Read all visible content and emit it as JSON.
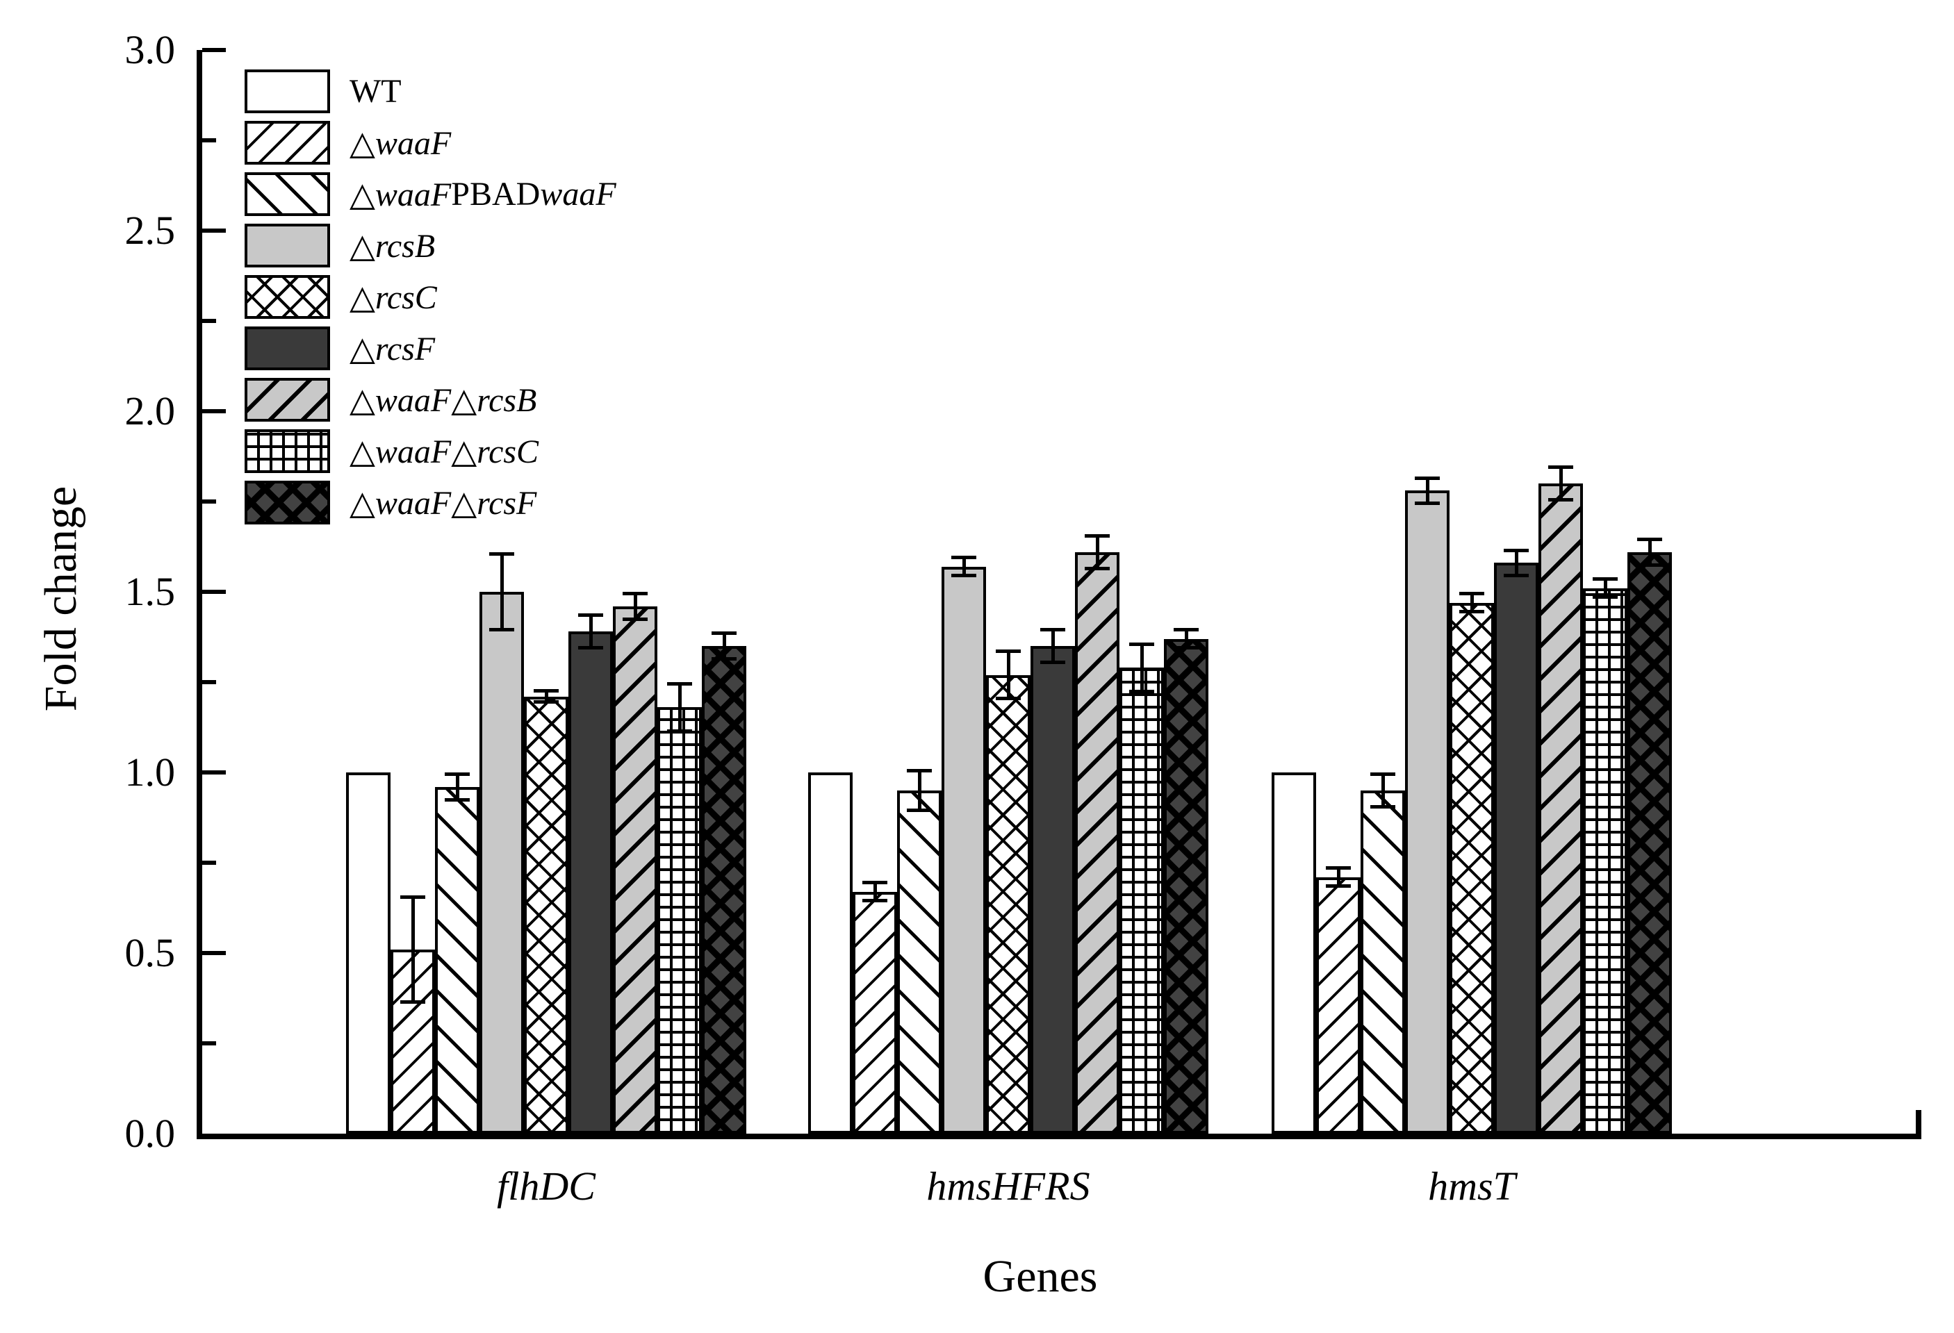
{
  "chart_data": {
    "type": "bar",
    "title": "",
    "xlabel": "Genes",
    "ylabel": "Fold change",
    "ylim": [
      0.0,
      3.0
    ],
    "ytick_labels": [
      "0.0",
      "0.5",
      "1.0",
      "1.5",
      "2.0",
      "2.5",
      "3.0"
    ],
    "ymajor_step": 0.5,
    "yminor_step": 0.25,
    "grid": false,
    "legend_position": "upper-left-inside",
    "categories": [
      "flhDC",
      "hmsHFRS",
      "hmsT"
    ],
    "series": [
      {
        "name": "WT",
        "pattern": "solid-white",
        "values": [
          1.0,
          1.0,
          1.0
        ],
        "errors": [
          0,
          0,
          0
        ]
      },
      {
        "name": "△waaF",
        "pattern": "hatch-up",
        "values": [
          0.51,
          0.67,
          0.71
        ],
        "errors": [
          0.15,
          0.03,
          0.03
        ]
      },
      {
        "name": "△waaF PBADwaaF",
        "pattern": "hatch-down-wide",
        "values": [
          0.96,
          0.95,
          0.95
        ],
        "errors": [
          0.04,
          0.06,
          0.05
        ]
      },
      {
        "name": "△rcsB",
        "pattern": "solid-lightgray",
        "values": [
          1.5,
          1.57,
          1.78
        ],
        "errors": [
          0.11,
          0.03,
          0.04
        ]
      },
      {
        "name": "△rcsC",
        "pattern": "crosshatch",
        "values": [
          1.21,
          1.27,
          1.47
        ],
        "errors": [
          0.02,
          0.07,
          0.03
        ]
      },
      {
        "name": "△rcsF",
        "pattern": "solid-darkgray",
        "values": [
          1.39,
          1.35,
          1.58
        ],
        "errors": [
          0.05,
          0.05,
          0.04
        ]
      },
      {
        "name": "△waaF△rcsB",
        "pattern": "hatch-up-gray",
        "values": [
          1.46,
          1.61,
          1.8
        ],
        "errors": [
          0.04,
          0.05,
          0.05
        ]
      },
      {
        "name": "△waaF△rcsC",
        "pattern": "grid",
        "values": [
          1.18,
          1.29,
          1.51
        ],
        "errors": [
          0.07,
          0.07,
          0.03
        ]
      },
      {
        "name": "△waaF△rcsF",
        "pattern": "crosshatch-dark",
        "values": [
          1.35,
          1.37,
          1.61
        ],
        "errors": [
          0.04,
          0.03,
          0.04
        ]
      }
    ],
    "legend_label_parts": [
      [
        {
          "text": "WT",
          "italic": false
        }
      ],
      [
        {
          "text": "△waaF",
          "italic": true
        }
      ],
      [
        {
          "text": "△waaF",
          "italic": true
        },
        {
          "text": " PBAD",
          "italic": false
        },
        {
          "text": "waaF",
          "italic": true
        }
      ],
      [
        {
          "text": "△rcsB",
          "italic": true
        }
      ],
      [
        {
          "text": "△rcsC",
          "italic": true
        }
      ],
      [
        {
          "text": "△rcsF",
          "italic": true
        }
      ],
      [
        {
          "text": "△waaF△rcsB",
          "italic": true
        }
      ],
      [
        {
          "text": "△waaF△rcsC",
          "italic": true
        }
      ],
      [
        {
          "text": "△waaF△rcsF",
          "italic": true
        }
      ]
    ],
    "colors": {
      "background": "#ffffff",
      "axis_and_hatch_line": "#000000",
      "light_gray_fill": "#c8c8c8",
      "dark_gray_fill": "#3a3a3a",
      "dark_crosshatch_fill": "#424242",
      "text": "#000000"
    }
  }
}
